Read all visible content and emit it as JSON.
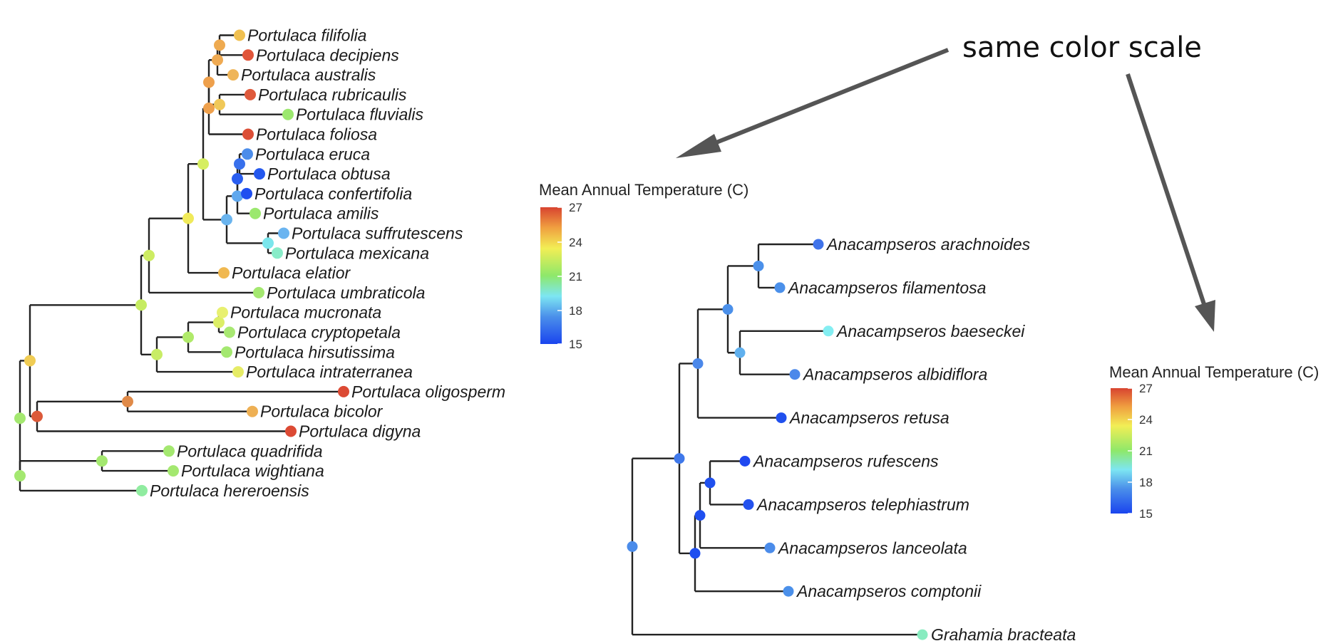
{
  "annotation": "same color scale",
  "colors": {
    "scale_stops": [
      "#1a44ee",
      "#4b90ea",
      "#7de6f2",
      "#8ee86a",
      "#f2ee55",
      "#f0a040",
      "#d84430"
    ],
    "branch": "#222222",
    "arrow": "#555555"
  },
  "legend": {
    "title": "Mean Annual Temperature (C)",
    "ticks": [
      "27",
      "24",
      "21",
      "18",
      "15"
    ],
    "min": 15,
    "max": 27
  },
  "tree_left": {
    "tips": [
      {
        "label": "Portulaca filifolia",
        "color": "#f0c050"
      },
      {
        "label": "Portulaca decipiens",
        "color": "#e0553a"
      },
      {
        "label": "Portulaca australis",
        "color": "#efb558"
      },
      {
        "label": "Portulaca rubricaulis",
        "color": "#df5a3c"
      },
      {
        "label": "Portulaca fluvialis",
        "color": "#9be86e"
      },
      {
        "label": "Portulaca foliosa",
        "color": "#dc4f37"
      },
      {
        "label": "Portulaca eruca",
        "color": "#4b8cea"
      },
      {
        "label": "Portulaca obtusa",
        "color": "#2458ee"
      },
      {
        "label": "Portulaca confertifolia",
        "color": "#1f4ff0"
      },
      {
        "label": "Portulaca amilis",
        "color": "#9be86e"
      },
      {
        "label": "Portulaca suffrutescens",
        "color": "#6ab4f0"
      },
      {
        "label": "Portulaca mexicana",
        "color": "#88ecc8"
      },
      {
        "label": "Portulaca elatior",
        "color": "#f0b850"
      },
      {
        "label": "Portulaca umbraticola",
        "color": "#a4e870"
      },
      {
        "label": "Portulaca mucronata",
        "color": "#e8f070"
      },
      {
        "label": "Portulaca cryptopetala",
        "color": "#a8e872"
      },
      {
        "label": "Portulaca hirsutissima",
        "color": "#a4e870"
      },
      {
        "label": "Portulaca intraterranea",
        "color": "#e6ec66"
      },
      {
        "label": "Portulaca oligosperm",
        "color": "#dc4a34"
      },
      {
        "label": "Portulaca bicolor",
        "color": "#eeb054"
      },
      {
        "label": "Portulaca digyna",
        "color": "#dc4a34"
      },
      {
        "label": "Portulaca quadrifida",
        "color": "#a4e870"
      },
      {
        "label": "Portulaca wightiana",
        "color": "#a4e870"
      },
      {
        "label": "Portulaca hereroensis",
        "color": "#90eca0"
      }
    ]
  },
  "tree_right": {
    "tips": [
      {
        "label": "Anacampseros arachnoides",
        "color": "#3f73ea"
      },
      {
        "label": "Anacampseros filamentosa",
        "color": "#4b90ea"
      },
      {
        "label": "Anacampseros baeseckei",
        "color": "#84eef2"
      },
      {
        "label": "Anacampseros albidiflora",
        "color": "#4b88ea"
      },
      {
        "label": "Anacampseros retusa",
        "color": "#2050ee"
      },
      {
        "label": "Anacampseros rufescens",
        "color": "#1f48f0"
      },
      {
        "label": "Anacampseros telephiastrum",
        "color": "#2452ee"
      },
      {
        "label": "Anacampseros lanceolata",
        "color": "#4b8cea"
      },
      {
        "label": "Anacampseros comptonii",
        "color": "#4b90ea"
      },
      {
        "label": "Grahamia bracteata",
        "color": "#88ecc0"
      }
    ]
  }
}
